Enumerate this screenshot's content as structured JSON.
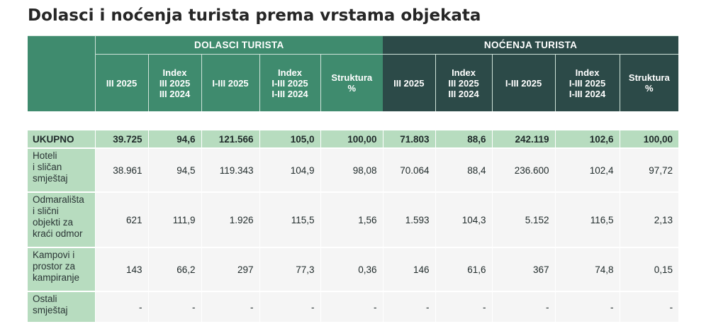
{
  "title": "Dolasci i noćenja turista prema vrstama objekata",
  "table": {
    "groups": {
      "arrivals": "DOLASCI TURISTA",
      "nights": "NOĆENJA TURISTA"
    },
    "subheaders": [
      [
        "III 2025"
      ],
      [
        "Index",
        "III 2025",
        "III 2024"
      ],
      [
        "I-III 2025"
      ],
      [
        "Index",
        "I-III 2025",
        "I-III 2024"
      ],
      [
        "Struktura",
        "%"
      ],
      [
        "III 2025"
      ],
      [
        "Index",
        "III 2025",
        "III 2024"
      ],
      [
        "I-III 2025"
      ],
      [
        "Index",
        "I-III 2025",
        "I-III 2024"
      ],
      [
        "Struktura",
        "%"
      ]
    ],
    "total": {
      "label": "UKUPNO",
      "values": [
        "39.725",
        "94,6",
        "121.566",
        "105,0",
        "100,00",
        "71.803",
        "88,6",
        "242.119",
        "102,6",
        "100,00"
      ]
    },
    "rows": [
      {
        "label_lines": [
          "Hoteli",
          "i sličan",
          "smještaj"
        ],
        "values": [
          "38.961",
          "94,5",
          "119.343",
          "104,9",
          "98,08",
          "70.064",
          "88,4",
          "236.600",
          "102,4",
          "97,72"
        ]
      },
      {
        "label_lines": [
          "Odmarališta",
          "i slični",
          "objekti za",
          "kraći odmor"
        ],
        "values": [
          "621",
          "111,9",
          "1.926",
          "115,5",
          "1,56",
          "1.593",
          "104,3",
          "5.152",
          "116,5",
          "2,13"
        ]
      },
      {
        "label_lines": [
          "Kampovi i",
          "prostor za",
          "kampiranje"
        ],
        "values": [
          "143",
          "66,2",
          "297",
          "77,3",
          "0,36",
          "146",
          "61,6",
          "367",
          "74,8",
          "0,15"
        ]
      },
      {
        "label_lines": [
          "Ostali",
          "smještaj"
        ],
        "values": [
          "-",
          "-",
          "-",
          "-",
          "-",
          "-",
          "-",
          "-",
          "-",
          "-"
        ]
      }
    ]
  }
}
